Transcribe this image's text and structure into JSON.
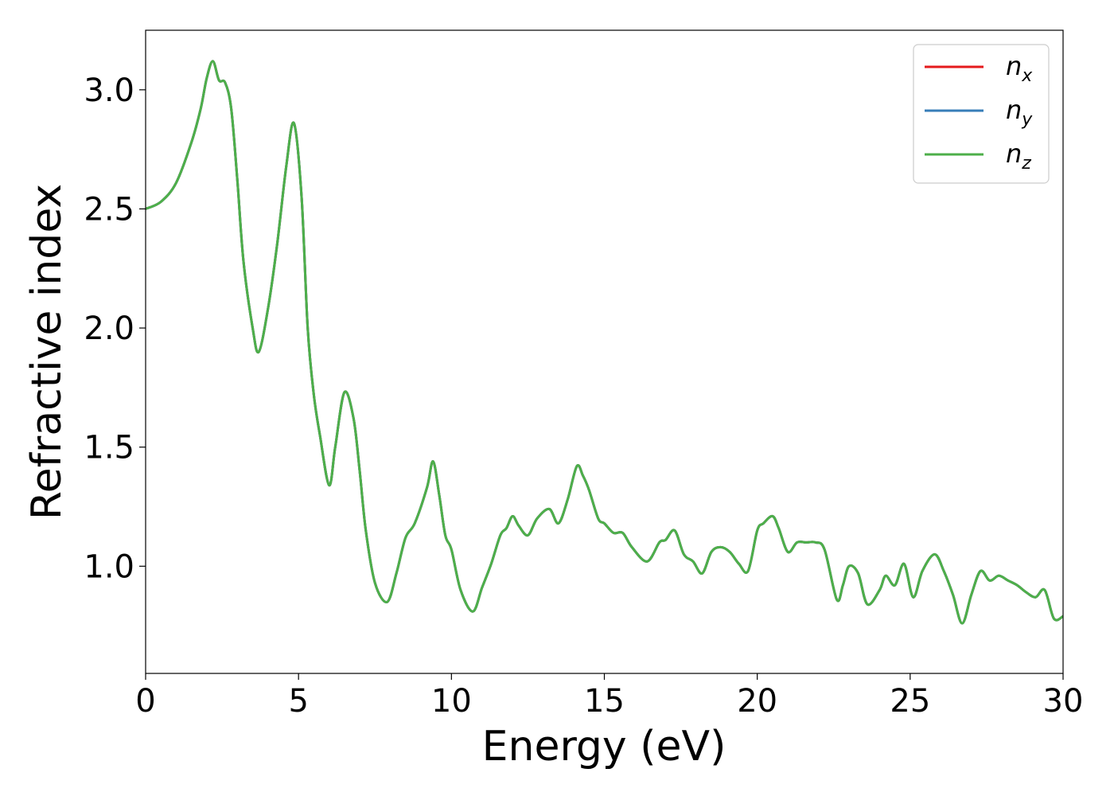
{
  "chart_data": {
    "type": "line",
    "title": "",
    "xlabel": "Energy (eV)",
    "ylabel": "Refractive index",
    "xlim": [
      0,
      30
    ],
    "ylim": [
      0.55,
      3.25
    ],
    "xticks": [
      0,
      5,
      10,
      15,
      20,
      25,
      30
    ],
    "yticks": [
      1.0,
      1.5,
      2.0,
      2.5,
      3.0
    ],
    "xtick_labels": [
      "0",
      "5",
      "10",
      "15",
      "20",
      "25",
      "30"
    ],
    "ytick_labels": [
      "1.0",
      "1.5",
      "2.0",
      "2.5",
      "3.0"
    ],
    "grid": false,
    "legend_position": "top-right",
    "series": [
      {
        "name": "n_x",
        "legend_base": "n",
        "legend_sub": "x",
        "color": "#e41a1c"
      },
      {
        "name": "n_y",
        "legend_base": "n",
        "legend_sub": "y",
        "color": "#377eb8"
      },
      {
        "name": "n_z",
        "legend_base": "n",
        "legend_sub": "z",
        "color": "#4daf4a"
      }
    ],
    "shared_points_note": "all three series coincide",
    "x": [
      0.0,
      0.5,
      1.0,
      1.5,
      1.8,
      2.0,
      2.2,
      2.4,
      2.6,
      2.8,
      3.0,
      3.2,
      3.5,
      3.7,
      4.0,
      4.3,
      4.6,
      4.85,
      5.1,
      5.3,
      5.5,
      5.7,
      6.0,
      6.2,
      6.5,
      6.8,
      7.0,
      7.2,
      7.5,
      7.9,
      8.2,
      8.5,
      8.8,
      9.2,
      9.4,
      9.6,
      9.8,
      10.0,
      10.3,
      10.7,
      11.0,
      11.3,
      11.6,
      11.8,
      12.0,
      12.2,
      12.5,
      12.8,
      13.2,
      13.5,
      13.8,
      14.1,
      14.3,
      14.5,
      14.8,
      15.0,
      15.3,
      15.6,
      15.9,
      16.4,
      16.8,
      17.0,
      17.3,
      17.6,
      17.9,
      18.2,
      18.5,
      18.8,
      19.1,
      19.4,
      19.7,
      20.0,
      20.2,
      20.5,
      20.7,
      21.0,
      21.3,
      21.6,
      21.9,
      22.2,
      22.6,
      22.8,
      23.0,
      23.3,
      23.6,
      24.0,
      24.2,
      24.5,
      24.8,
      25.1,
      25.4,
      25.8,
      26.1,
      26.4,
      26.7,
      27.0,
      27.3,
      27.6,
      27.9,
      28.2,
      28.5,
      28.8,
      29.1,
      29.4,
      29.7,
      30.0
    ],
    "y": [
      2.5,
      2.53,
      2.61,
      2.78,
      2.92,
      3.05,
      3.12,
      3.04,
      3.03,
      2.92,
      2.62,
      2.28,
      2.0,
      1.9,
      2.08,
      2.35,
      2.68,
      2.86,
      2.55,
      2.0,
      1.72,
      1.55,
      1.34,
      1.5,
      1.73,
      1.62,
      1.4,
      1.15,
      0.93,
      0.85,
      0.97,
      1.12,
      1.18,
      1.33,
      1.44,
      1.3,
      1.13,
      1.07,
      0.9,
      0.81,
      0.91,
      1.01,
      1.13,
      1.16,
      1.21,
      1.17,
      1.13,
      1.2,
      1.24,
      1.18,
      1.28,
      1.42,
      1.38,
      1.32,
      1.2,
      1.18,
      1.14,
      1.14,
      1.08,
      1.02,
      1.1,
      1.11,
      1.15,
      1.05,
      1.02,
      0.97,
      1.06,
      1.08,
      1.06,
      1.01,
      0.98,
      1.15,
      1.18,
      1.21,
      1.16,
      1.06,
      1.1,
      1.1,
      1.1,
      1.07,
      0.86,
      0.92,
      1.0,
      0.97,
      0.84,
      0.9,
      0.96,
      0.92,
      1.01,
      0.87,
      0.98,
      1.05,
      0.98,
      0.88,
      0.76,
      0.88,
      0.98,
      0.94,
      0.96,
      0.94,
      0.92,
      0.89,
      0.87,
      0.9,
      0.78,
      0.79
    ]
  }
}
